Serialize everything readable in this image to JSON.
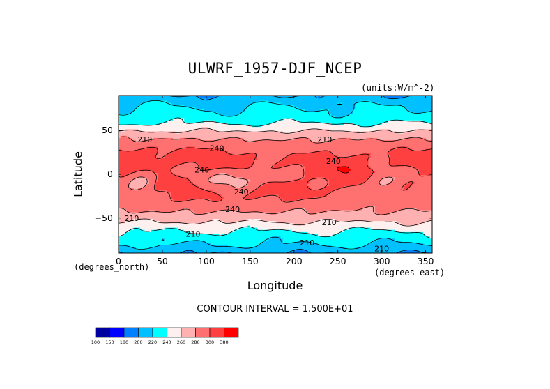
{
  "chart_data": {
    "type": "heatmap",
    "title": "ULWRF_1957-DJF_NCEP",
    "units_label": "(units:W/m^-2)",
    "xlabel": "Longitude",
    "ylabel": "Latitude",
    "x_unit_label": "(degrees_north)",
    "x_unit_label_east": "(degrees_east)",
    "xlim": [
      0,
      357.5
    ],
    "ylim": [
      -90,
      90
    ],
    "x_ticks": [
      0,
      50,
      100,
      150,
      200,
      250,
      300,
      350
    ],
    "y_ticks": [
      50,
      0,
      -50
    ],
    "x_tick_labels": [
      "0",
      "50",
      "100",
      "150",
      "200",
      "250",
      "300",
      "350"
    ],
    "y_tick_labels": [
      "50",
      "0",
      "−50"
    ],
    "contour_interval": "CONTOUR INTERVAL = 1.500E+01",
    "contour_labels": [
      {
        "text": "210",
        "lon": 30,
        "lat": 40
      },
      {
        "text": "240",
        "lon": 112,
        "lat": 30
      },
      {
        "text": "210",
        "lon": 235,
        "lat": 40
      },
      {
        "text": "240",
        "lon": 95,
        "lat": 5
      },
      {
        "text": "240",
        "lon": 245,
        "lat": 15
      },
      {
        "text": "240",
        "lon": 140,
        "lat": -20
      },
      {
        "text": "240",
        "lon": 130,
        "lat": -40
      },
      {
        "text": "210",
        "lon": 15,
        "lat": -50
      },
      {
        "text": "210",
        "lon": 85,
        "lat": -68
      },
      {
        "text": "210",
        "lon": 240,
        "lat": -55
      },
      {
        "text": "210",
        "lon": 215,
        "lat": -78
      },
      {
        "text": "210",
        "lon": 300,
        "lat": -85
      }
    ],
    "colorbar": {
      "colors": [
        "#0000a0",
        "#0000ff",
        "#0080ff",
        "#00c0ff",
        "#00ffff",
        "#fff0f0",
        "#ffb0b0",
        "#ff7070",
        "#ff4040",
        "#ff0000"
      ],
      "tick_labels": [
        "100",
        "150",
        "180",
        "200",
        "220",
        "240",
        "260",
        "280",
        "300",
        "380"
      ]
    },
    "levels": [
      160,
      180,
      200,
      220,
      240,
      260,
      280,
      300
    ]
  }
}
